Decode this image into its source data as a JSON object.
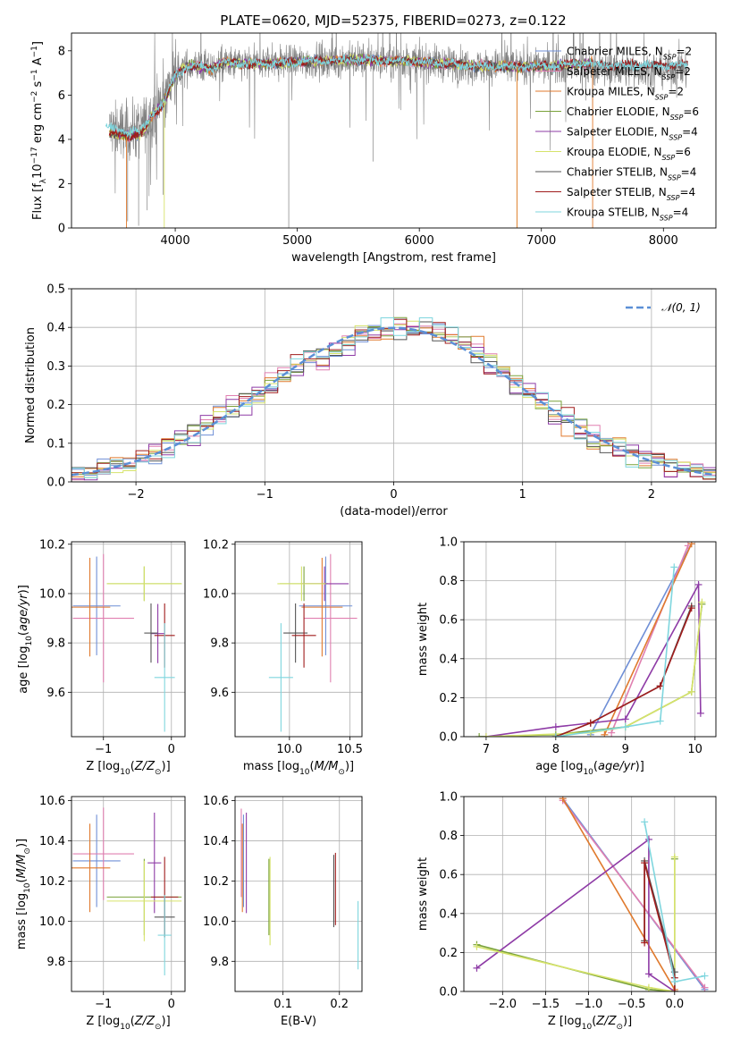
{
  "title": "PLATE=0620, MJD=52375, FIBERID=0273, z=0.122",
  "colors": {
    "Chabrier MILES": "#6f8fd6",
    "Salpeter MILES": "#e07fb0",
    "Kroupa MILES": "#e07a2e",
    "Chabrier ELODIE": "#7aa23a",
    "Salpeter ELODIE": "#8e3ba6",
    "Kroupa ELODIE": "#d6e36b",
    "Chabrier STELIB": "#555555",
    "Salpeter STELIB": "#a01c1c",
    "Kroupa STELIB": "#7fd6de",
    "data": "#808080",
    "normal": "#5b8fd6"
  },
  "chart_data": [
    {
      "id": "spectrum",
      "type": "line",
      "xlabel": "wavelength [Angstrom, rest frame]",
      "ylabel": "Flux [f_λ10^-17 erg cm^-2 s^-1 A^-1]",
      "xlim": [
        3150,
        8430
      ],
      "ylim": [
        0,
        8.8
      ],
      "xticks": [
        4000,
        5000,
        6000,
        7000,
        8000
      ],
      "yticks": [
        0,
        2,
        4,
        6,
        8
      ],
      "legend": [
        {
          "name": "Chabrier MILES",
          "nssp": 2
        },
        {
          "name": "Salpeter MILES",
          "nssp": 2
        },
        {
          "name": "Kroupa MILES",
          "nssp": 2
        },
        {
          "name": "Chabrier ELODIE",
          "nssp": 6
        },
        {
          "name": "Salpeter ELODIE",
          "nssp": 4
        },
        {
          "name": "Kroupa ELODIE",
          "nssp": 6
        },
        {
          "name": "Chabrier STELIB",
          "nssp": 4
        },
        {
          "name": "Salpeter STELIB",
          "nssp": 4
        },
        {
          "name": "Kroupa STELIB",
          "nssp": 4
        }
      ],
      "model_continuum": {
        "x": [
          3460,
          3600,
          3700,
          3760,
          3800,
          3900,
          4000,
          4100,
          4200,
          4300,
          4400,
          4600,
          5000,
          5500,
          6000,
          6500,
          7000,
          7420
        ],
        "y": [
          4.25,
          4.15,
          4.2,
          4.5,
          5.0,
          5.6,
          6.9,
          7.3,
          7.3,
          7.2,
          7.5,
          7.4,
          7.5,
          7.6,
          7.5,
          7.3,
          7.3,
          7.45
        ]
      },
      "data_continuum": {
        "x": [
          3460,
          3600,
          3700,
          3800,
          3900,
          4000,
          4100,
          4200,
          4300,
          4400,
          4600,
          5000,
          5500,
          6000,
          6500,
          7000,
          7500,
          8000,
          8200
        ],
        "y": [
          4.5,
          4.4,
          4.4,
          5.0,
          5.8,
          6.9,
          7.3,
          7.3,
          7.2,
          7.4,
          7.4,
          7.5,
          7.6,
          7.5,
          7.3,
          7.3,
          7.2,
          7.1,
          7.1
        ]
      }
    },
    {
      "id": "residual-histogram",
      "type": "line",
      "xlabel": "(data-model)/error",
      "ylabel": "Normed distribution",
      "xlim": [
        -2.5,
        2.5
      ],
      "ylim": [
        0,
        0.5
      ],
      "xticks": [
        -2,
        -1,
        0,
        1,
        2
      ],
      "yticks": [
        0.0,
        0.1,
        0.2,
        0.3,
        0.4,
        0.5
      ],
      "legend": [
        "𝒩(0, 1)"
      ],
      "bin_width": 0.1,
      "bins_start": -2.5
    },
    {
      "id": "age-vs-metallicity",
      "type": "scatter",
      "xlabel": "Z [log10(Z/Z⊙)]",
      "ylabel": "age [log10(age/yr)]",
      "xlim": [
        -1.47,
        0.2
      ],
      "ylim": [
        9.42,
        10.21
      ],
      "xticks": [
        -1,
        0
      ],
      "yticks": [
        9.6,
        9.8,
        10.0,
        10.2
      ],
      "points": [
        {
          "model": "Chabrier MILES",
          "x": -1.1,
          "xerr": 0.35,
          "y": 9.95,
          "yerr": 0.2
        },
        {
          "model": "Salpeter MILES",
          "x": -1.0,
          "xerr": 0.45,
          "y": 9.9,
          "yerr": 0.26
        },
        {
          "model": "Kroupa MILES",
          "x": -1.2,
          "xerr": 0.3,
          "y": 9.945,
          "yerr": 0.2
        },
        {
          "model": "Chabrier ELODIE",
          "x": -0.4,
          "xerr": 0.55,
          "y": 10.04,
          "yerr": 0.07
        },
        {
          "model": "Salpeter ELODIE",
          "x": -0.2,
          "xerr": 0.1,
          "y": 9.838,
          "yerr": 0.12
        },
        {
          "model": "Kroupa ELODIE",
          "x": -0.4,
          "xerr": 0.55,
          "y": 10.04,
          "yerr": 0.07
        },
        {
          "model": "Chabrier STELIB",
          "x": -0.3,
          "xerr": 0.1,
          "y": 9.84,
          "yerr": 0.12
        },
        {
          "model": "Salpeter STELIB",
          "x": -0.1,
          "xerr": 0.15,
          "y": 9.83,
          "yerr": 0.13
        },
        {
          "model": "Kroupa STELIB",
          "x": -0.1,
          "xerr": 0.15,
          "y": 9.66,
          "yerr": 0.22
        }
      ]
    },
    {
      "id": "age-vs-mass",
      "type": "scatter",
      "xlabel": "mass [log10(M/M⊙)]",
      "ylabel": "",
      "xlim": [
        9.55,
        10.6
      ],
      "ylim": [
        9.42,
        10.21
      ],
      "xticks": [
        10.0,
        10.5
      ],
      "yticks": [
        9.6,
        9.8,
        10.0,
        10.2
      ],
      "points": [
        {
          "model": "Chabrier MILES",
          "x": 10.3,
          "xerr": 0.22,
          "y": 9.95,
          "yerr": 0.2
        },
        {
          "model": "Salpeter MILES",
          "x": 10.34,
          "xerr": 0.22,
          "y": 9.9,
          "yerr": 0.26
        },
        {
          "model": "Kroupa MILES",
          "x": 10.27,
          "xerr": 0.17,
          "y": 9.945,
          "yerr": 0.2
        },
        {
          "model": "Chabrier ELODIE",
          "x": 10.12,
          "xerr": 0.2,
          "y": 10.04,
          "yerr": 0.07
        },
        {
          "model": "Salpeter ELODIE",
          "x": 10.29,
          "xerr": 0.2,
          "y": 10.04,
          "yerr": 0.07
        },
        {
          "model": "Kroupa ELODIE",
          "x": 10.1,
          "xerr": 0.2,
          "y": 10.04,
          "yerr": 0.07
        },
        {
          "model": "Chabrier STELIB",
          "x": 10.05,
          "xerr": 0.1,
          "y": 9.84,
          "yerr": 0.12
        },
        {
          "model": "Salpeter STELIB",
          "x": 10.12,
          "xerr": 0.1,
          "y": 9.83,
          "yerr": 0.13
        },
        {
          "model": "Kroupa STELIB",
          "x": 9.93,
          "xerr": 0.1,
          "y": 9.66,
          "yerr": 0.22
        }
      ]
    },
    {
      "id": "mass-weight-vs-age",
      "type": "line",
      "xlabel": "age [log10(age/yr)]",
      "ylabel": "mass weight",
      "xlim": [
        6.68,
        10.3
      ],
      "ylim": [
        0,
        1.0
      ],
      "xticks": [
        7,
        8,
        9,
        10
      ],
      "yticks": [
        0.0,
        0.2,
        0.4,
        0.6,
        0.8,
        1.0
      ],
      "series": [
        {
          "model": "Chabrier MILES",
          "x": [
            8.5,
            9.95
          ],
          "y": [
            0.01,
            0.99
          ]
        },
        {
          "model": "Salpeter MILES",
          "x": [
            8.8,
            9.9
          ],
          "y": [
            0.02,
            0.98
          ]
        },
        {
          "model": "Kroupa MILES",
          "x": [
            8.7,
            9.95
          ],
          "y": [
            0.01,
            0.99
          ]
        },
        {
          "model": "Chabrier ELODIE",
          "x": [
            6.9,
            8.0,
            9.0,
            9.95,
            10.1
          ],
          "y": [
            0.0,
            0.01,
            0.05,
            0.23,
            0.68
          ]
        },
        {
          "model": "Salpeter ELODIE",
          "x": [
            7.0,
            8.0,
            9.0,
            10.05,
            10.08
          ],
          "y": [
            0.0,
            0.05,
            0.09,
            0.78,
            0.12
          ]
        },
        {
          "model": "Kroupa ELODIE",
          "x": [
            7.0,
            8.5,
            9.0,
            9.95,
            10.1
          ],
          "y": [
            0.0,
            0.02,
            0.05,
            0.23,
            0.69
          ]
        },
        {
          "model": "Chabrier STELIB",
          "x": [
            8.0,
            8.5,
            9.5,
            9.95
          ],
          "y": [
            0.0,
            0.07,
            0.26,
            0.67
          ]
        },
        {
          "model": "Salpeter STELIB",
          "x": [
            8.0,
            8.5,
            9.5,
            9.95
          ],
          "y": [
            0.0,
            0.07,
            0.26,
            0.66
          ]
        },
        {
          "model": "Kroupa STELIB",
          "x": [
            8.0,
            9.0,
            9.5,
            9.7
          ],
          "y": [
            0.0,
            0.05,
            0.08,
            0.87
          ]
        }
      ]
    },
    {
      "id": "mass-vs-metallicity",
      "type": "scatter",
      "xlabel": "Z [log10(Z/Z⊙)]",
      "ylabel": "mass [log10(M/M⊙)]",
      "xlim": [
        -1.47,
        0.2
      ],
      "ylim": [
        9.65,
        10.62
      ],
      "xticks": [
        -1,
        0
      ],
      "yticks": [
        9.8,
        10.0,
        10.2,
        10.4,
        10.6
      ],
      "points": [
        {
          "model": "Chabrier MILES",
          "x": -1.1,
          "xerr": 0.35,
          "y": 10.3,
          "yerr": 0.23
        },
        {
          "model": "Salpeter MILES",
          "x": -1.0,
          "xerr": 0.45,
          "y": 10.335,
          "yerr": 0.23
        },
        {
          "model": "Kroupa MILES",
          "x": -1.2,
          "xerr": 0.3,
          "y": 10.265,
          "yerr": 0.22
        },
        {
          "model": "Chabrier ELODIE",
          "x": -0.4,
          "xerr": 0.55,
          "y": 10.12,
          "yerr": 0.19
        },
        {
          "model": "Salpeter ELODIE",
          "x": -0.25,
          "xerr": 0.1,
          "y": 10.29,
          "yerr": 0.25
        },
        {
          "model": "Kroupa ELODIE",
          "x": -0.4,
          "xerr": 0.55,
          "y": 10.1,
          "yerr": 0.2
        },
        {
          "model": "Chabrier STELIB",
          "x": -0.1,
          "xerr": 0.15,
          "y": 10.02,
          "yerr": 0.1
        },
        {
          "model": "Salpeter STELIB",
          "x": -0.1,
          "xerr": 0.2,
          "y": 10.12,
          "yerr": 0.2
        },
        {
          "model": "Kroupa STELIB",
          "x": -0.1,
          "xerr": 0.1,
          "y": 9.93,
          "yerr": 0.2
        }
      ]
    },
    {
      "id": "mass-vs-ebv",
      "type": "scatter",
      "xlabel": "E(B-V)",
      "ylabel": "",
      "xlim": [
        0.015,
        0.24
      ],
      "ylim": [
        9.65,
        10.62
      ],
      "xticks": [
        0.1,
        0.2
      ],
      "yticks": [
        9.8,
        10.0,
        10.2,
        10.4,
        10.6
      ],
      "points": [
        {
          "model": "Chabrier MILES",
          "x": 0.03,
          "y": 10.3,
          "yerr": 0.23
        },
        {
          "model": "Salpeter MILES",
          "x": 0.026,
          "y": 10.34,
          "yerr": 0.22
        },
        {
          "model": "Kroupa MILES",
          "x": 0.028,
          "y": 10.265,
          "yerr": 0.22
        },
        {
          "model": "Chabrier ELODIE",
          "x": 0.075,
          "y": 10.12,
          "yerr": 0.19
        },
        {
          "model": "Salpeter ELODIE",
          "x": 0.035,
          "y": 10.29,
          "yerr": 0.25
        },
        {
          "model": "Kroupa ELODIE",
          "x": 0.077,
          "y": 10.1,
          "yerr": 0.22
        },
        {
          "model": "Chabrier STELIB",
          "x": 0.19,
          "y": 10.15,
          "yerr": 0.18
        },
        {
          "model": "Salpeter STELIB",
          "x": 0.193,
          "y": 10.16,
          "yerr": 0.18
        },
        {
          "model": "Kroupa STELIB",
          "x": 0.233,
          "y": 9.93,
          "yerr": 0.17
        }
      ]
    },
    {
      "id": "mass-weight-vs-metallicity",
      "type": "line",
      "xlabel": "Z [log10(Z/Z⊙)]",
      "ylabel": "mass weight",
      "xlim": [
        -2.45,
        0.48
      ],
      "ylim": [
        0,
        1.0
      ],
      "xticks": [
        -2.0,
        -1.5,
        -1.0,
        -0.5,
        0.0
      ],
      "yticks": [
        0.0,
        0.2,
        0.4,
        0.6,
        0.8,
        1.0
      ],
      "series": [
        {
          "model": "Chabrier MILES",
          "x": [
            -1.3,
            0.35
          ],
          "y": [
            0.99,
            0.01
          ]
        },
        {
          "model": "Salpeter MILES",
          "x": [
            -1.3,
            0.35
          ],
          "y": [
            0.98,
            0.02
          ]
        },
        {
          "model": "Kroupa MILES",
          "x": [
            -1.3,
            0.0
          ],
          "y": [
            0.99,
            0.01
          ]
        },
        {
          "model": "Chabrier ELODIE",
          "x": [
            -2.3,
            -0.3,
            0.0,
            0.0
          ],
          "y": [
            0.24,
            0.01,
            0.0,
            0.68
          ]
        },
        {
          "model": "Salpeter ELODIE",
          "x": [
            -2.3,
            -0.3,
            -0.3,
            0.0
          ],
          "y": [
            0.12,
            0.78,
            0.09,
            0.0
          ]
        },
        {
          "model": "Kroupa ELODIE",
          "x": [
            -2.3,
            -0.3,
            0.0,
            0.0
          ],
          "y": [
            0.23,
            0.02,
            0.0,
            0.69
          ]
        },
        {
          "model": "Chabrier STELIB",
          "x": [
            -0.35,
            -0.35,
            0.0,
            0.0
          ],
          "y": [
            0.26,
            0.67,
            0.1,
            0.0
          ]
        },
        {
          "model": "Salpeter STELIB",
          "x": [
            -0.35,
            -0.35,
            0.0,
            0.0
          ],
          "y": [
            0.25,
            0.66,
            0.07,
            0.0
          ]
        },
        {
          "model": "Kroupa STELIB",
          "x": [
            -0.35,
            0.0,
            0.35
          ],
          "y": [
            0.87,
            0.05,
            0.08
          ]
        }
      ]
    }
  ]
}
